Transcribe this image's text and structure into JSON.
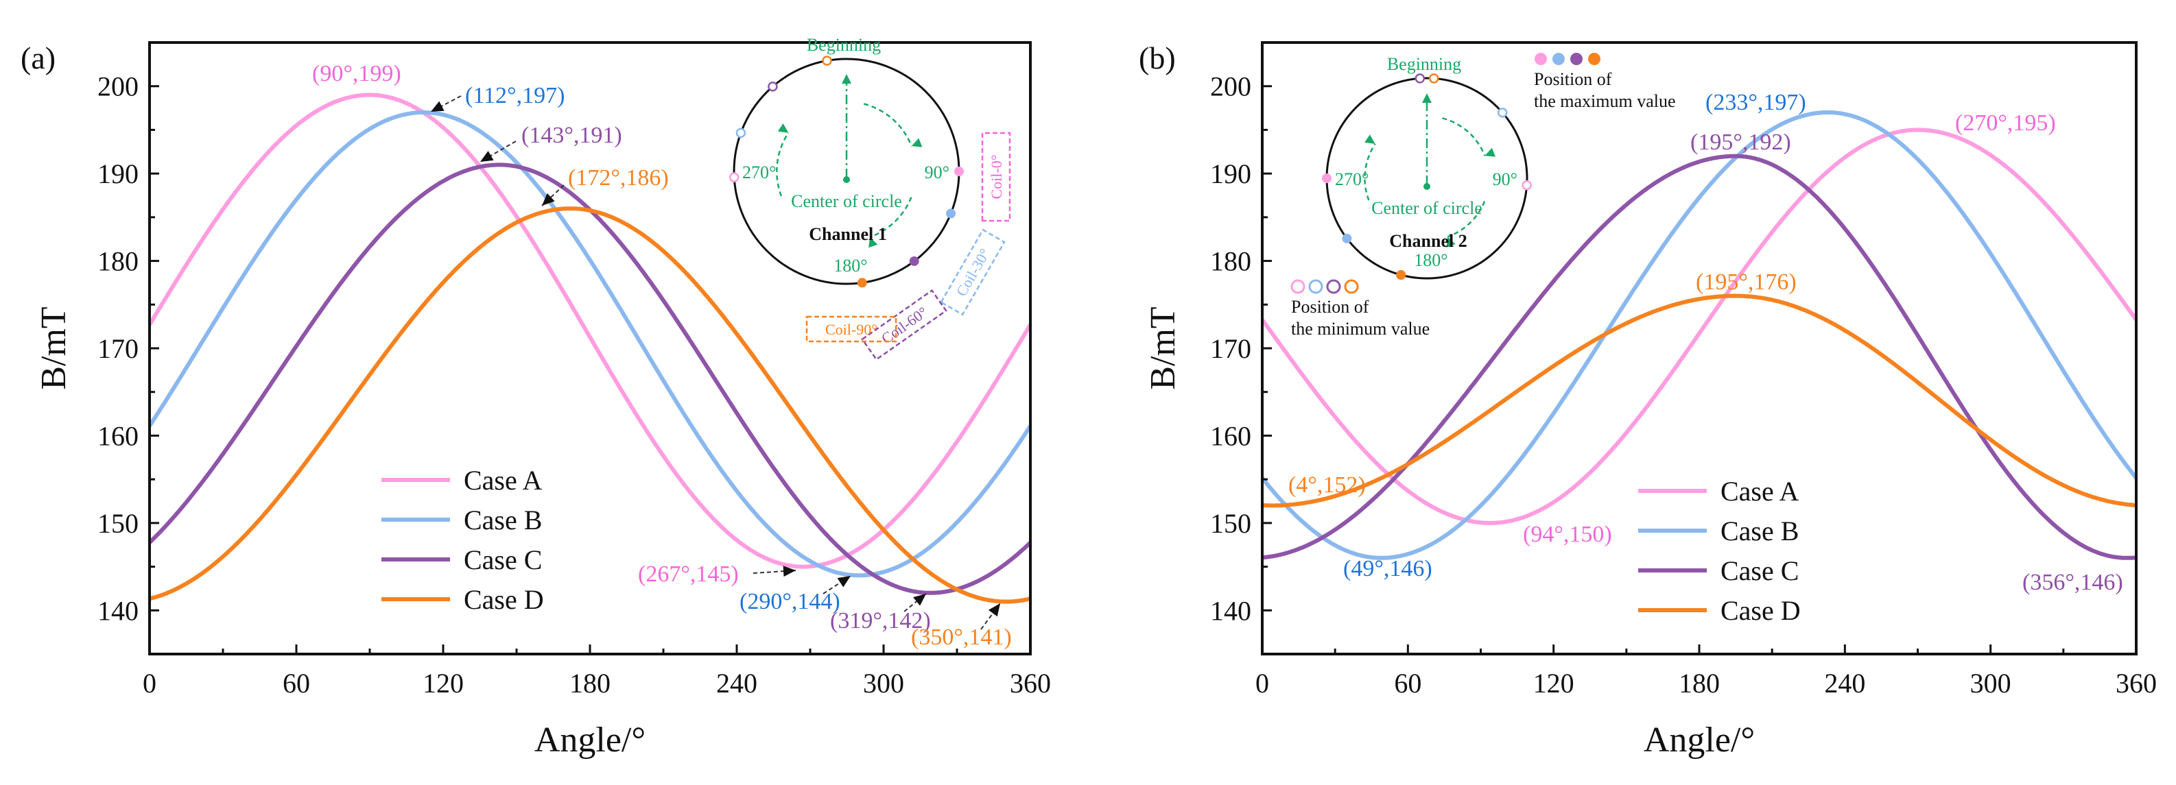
{
  "colors": {
    "case_a": "#ff9de0",
    "case_b": "#8ab8ee",
    "case_c": "#8e55a8",
    "case_d": "#f6821f",
    "inset_green": "#1aa867",
    "annot_a": "#f266d8",
    "annot_b": "#1f74d6",
    "annot_c": "#8e4ea6",
    "annot_d": "#f6821f"
  },
  "chart_data": [
    {
      "panel": "(a)",
      "type": "line",
      "title": "",
      "xlabel": "Angle/°",
      "ylabel": "B/mT",
      "xlim": [
        0,
        360
      ],
      "ylim": [
        135,
        205
      ],
      "xticks": [
        0,
        60,
        120,
        180,
        240,
        300,
        360
      ],
      "xtick_labels": [
        "0",
        "60",
        "120",
        "180",
        "240",
        "300",
        "360"
      ],
      "yticks": [
        140,
        150,
        160,
        170,
        180,
        190,
        200
      ],
      "ytick_labels": [
        "140",
        "150",
        "160",
        "170",
        "180",
        "190",
        "200"
      ],
      "grid": false,
      "legend": {
        "position": "lower-left",
        "entries": [
          "Case A",
          "Case B",
          "Case C",
          "Case D"
        ]
      },
      "series": [
        {
          "name": "Case A",
          "color_key": "case_a",
          "max": {
            "x": 90,
            "y": 199
          },
          "min": {
            "x": 267,
            "y": 145
          }
        },
        {
          "name": "Case B",
          "color_key": "case_b",
          "max": {
            "x": 112,
            "y": 197
          },
          "min": {
            "x": 290,
            "y": 144
          }
        },
        {
          "name": "Case C",
          "color_key": "case_c",
          "max": {
            "x": 143,
            "y": 191
          },
          "min": {
            "x": 319,
            "y": 142
          }
        },
        {
          "name": "Case D",
          "color_key": "case_d",
          "max": {
            "x": 172,
            "y": 186
          },
          "min": {
            "x": 350,
            "y": 141
          }
        }
      ],
      "annotations": [
        {
          "text": "(90°,199)",
          "color_key": "annot_a"
        },
        {
          "text": "(112°,197)",
          "color_key": "annot_b"
        },
        {
          "text": "(143°,191)",
          "color_key": "annot_c"
        },
        {
          "text": "(172°,186)",
          "color_key": "annot_d"
        },
        {
          "text": "(267°,145)",
          "color_key": "annot_a"
        },
        {
          "text": "(290°,144)",
          "color_key": "annot_b"
        },
        {
          "text": "(319°,142)",
          "color_key": "annot_c"
        },
        {
          "text": "(350°,141)",
          "color_key": "annot_d"
        }
      ],
      "inset": {
        "beginning": "Beginning",
        "center": "Center of circle",
        "label_90": "90°",
        "label_180": "180°",
        "label_270": "270°",
        "channel": "Channel 1",
        "coils": [
          "Coil-0°",
          "Coil-30°",
          "Coil-60°",
          "Coil-90°"
        ]
      }
    },
    {
      "panel": "(b)",
      "type": "line",
      "title": "",
      "xlabel": "Angle/°",
      "ylabel": "B/mT",
      "xlim": [
        0,
        360
      ],
      "ylim": [
        135,
        205
      ],
      "xticks": [
        0,
        60,
        120,
        180,
        240,
        300,
        360
      ],
      "xtick_labels": [
        "0",
        "60",
        "120",
        "180",
        "240",
        "300",
        "360"
      ],
      "yticks": [
        140,
        150,
        160,
        170,
        180,
        190,
        200
      ],
      "ytick_labels": [
        "140",
        "150",
        "160",
        "170",
        "180",
        "190",
        "200"
      ],
      "grid": false,
      "legend": {
        "position": "lower-center",
        "entries": [
          "Case A",
          "Case B",
          "Case C",
          "Case D"
        ]
      },
      "series": [
        {
          "name": "Case A",
          "color_key": "case_a",
          "max": {
            "x": 270,
            "y": 195
          },
          "min": {
            "x": 94,
            "y": 150
          }
        },
        {
          "name": "Case B",
          "color_key": "case_b",
          "max": {
            "x": 233,
            "y": 197
          },
          "min": {
            "x": 49,
            "y": 146
          }
        },
        {
          "name": "Case C",
          "color_key": "case_c",
          "max": {
            "x": 195,
            "y": 192
          },
          "min": {
            "x": 356,
            "y": 146
          }
        },
        {
          "name": "Case D",
          "color_key": "case_d",
          "max": {
            "x": 195,
            "y": 176
          },
          "min": {
            "x": 4,
            "y": 152
          }
        }
      ],
      "annotations": [
        {
          "text": "(270°,195)",
          "color_key": "annot_a"
        },
        {
          "text": "(233°,197)",
          "color_key": "annot_b"
        },
        {
          "text": "(195°,192)",
          "color_key": "annot_c"
        },
        {
          "text": "(195°,176)",
          "color_key": "annot_d"
        },
        {
          "text": "(94°,150)",
          "color_key": "annot_a"
        },
        {
          "text": "(49°,146)",
          "color_key": "annot_b"
        },
        {
          "text": "(356°,146)",
          "color_key": "annot_c"
        },
        {
          "text": "(4°,152)",
          "color_key": "annot_d"
        }
      ],
      "inset": {
        "beginning": "Beginning",
        "center": "Center of circle",
        "label_90": "90°",
        "label_180": "180°",
        "label_270": "270°",
        "channel": "Channel 2",
        "max_legend": [
          "Position of",
          "the maximum value"
        ],
        "min_legend": [
          "Position of",
          "the minimum value"
        ]
      }
    }
  ]
}
